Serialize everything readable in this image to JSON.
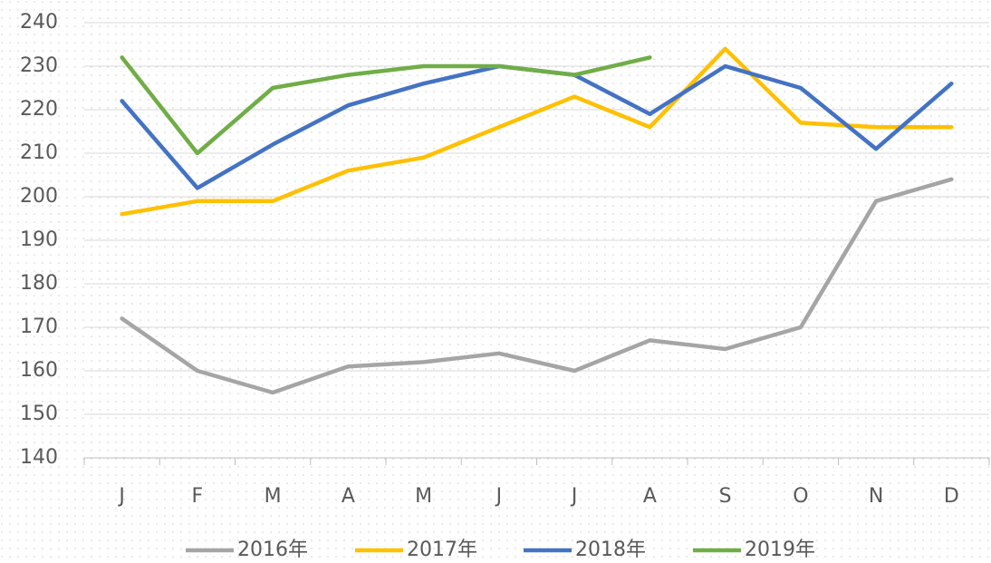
{
  "chart_data": {
    "type": "line",
    "categories": [
      "J",
      "F",
      "M",
      "A",
      "M",
      "J",
      "J",
      "A",
      "S",
      "O",
      "N",
      "D"
    ],
    "series": [
      {
        "name": "2016年",
        "color": "#a5a5a5",
        "values": [
          172,
          160,
          155,
          161,
          162,
          164,
          160,
          167,
          165,
          170,
          199,
          204
        ]
      },
      {
        "name": "2017年",
        "color": "#ffc000",
        "values": [
          196,
          199,
          199,
          206,
          209,
          216,
          223,
          216,
          234,
          217,
          216,
          216
        ]
      },
      {
        "name": "2018年",
        "color": "#4472c4",
        "values": [
          222,
          202,
          212,
          221,
          226,
          230,
          228,
          219,
          230,
          225,
          211,
          226
        ]
      },
      {
        "name": "2019年",
        "color": "#70ad47",
        "values": [
          232,
          210,
          225,
          228,
          230,
          230,
          228,
          232,
          null,
          null,
          null,
          null
        ]
      }
    ],
    "ylim": [
      140,
      240
    ],
    "yticks": [
      140,
      150,
      160,
      170,
      180,
      190,
      200,
      210,
      220,
      230,
      240
    ],
    "grid": true,
    "legend": "bottom"
  }
}
